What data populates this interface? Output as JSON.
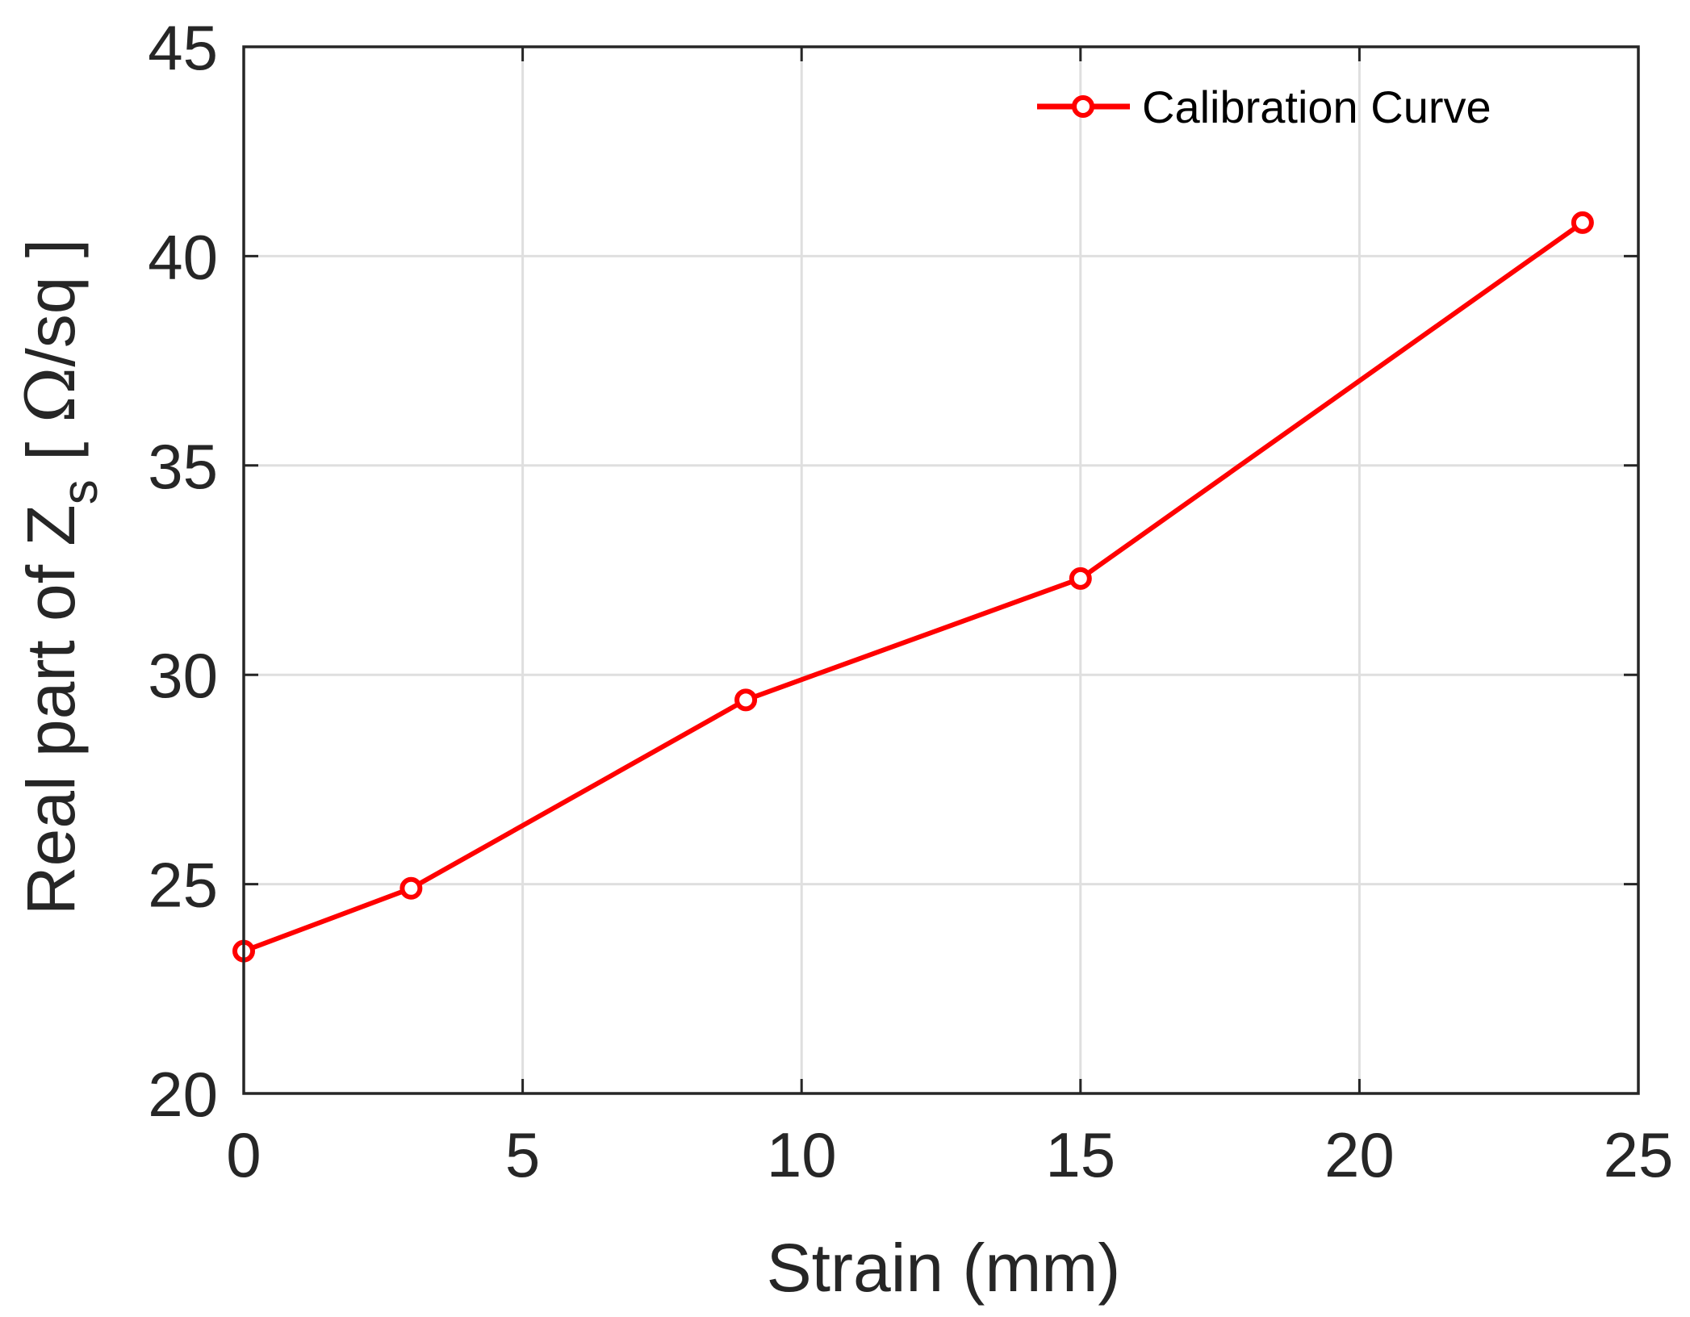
{
  "chart_data": {
    "type": "line",
    "xlabel": "Strain (mm)",
    "ylabel": {
      "prefix": "Real part of Z",
      "subscript": "s",
      "unit_open": " [ ",
      "unit_symbol": "Ω",
      "unit_rest": "/sq ]"
    },
    "xlim": [
      0,
      25
    ],
    "ylim": [
      20,
      45
    ],
    "xticks": [
      "0",
      "5",
      "10",
      "15",
      "20",
      "25"
    ],
    "yticks": [
      "20",
      "25",
      "30",
      "35",
      "40",
      "45"
    ],
    "grid": true,
    "legend_position": "top-right",
    "series": [
      {
        "name": "Calibration Curve",
        "color": "#ff0000",
        "marker": "circle",
        "x": [
          0,
          3,
          9,
          15,
          24
        ],
        "y": [
          23.4,
          24.9,
          29.4,
          32.3,
          40.8
        ]
      }
    ]
  }
}
